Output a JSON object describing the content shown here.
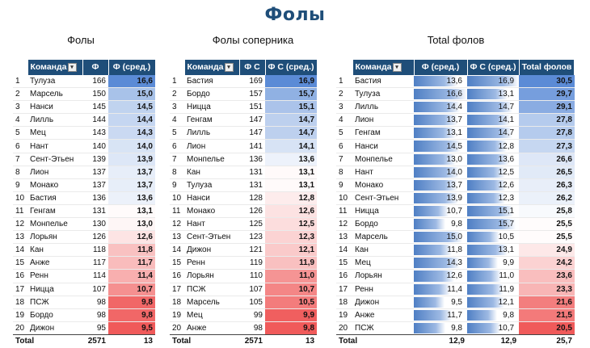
{
  "page_title": "Фолы",
  "colors": {
    "header_bg": "#1f4e79",
    "title": "#1f4e79"
  },
  "table1": {
    "subtitle": "Фолы",
    "headers": [
      "Команда",
      "Ф",
      "Ф (сред.)"
    ],
    "rows": [
      [
        "1",
        "Тулуза",
        "166",
        "16,6"
      ],
      [
        "2",
        "Марсель",
        "150",
        "15,0"
      ],
      [
        "3",
        "Нанси",
        "145",
        "14,5"
      ],
      [
        "4",
        "Лилль",
        "144",
        "14,4"
      ],
      [
        "5",
        "Мец",
        "143",
        "14,3"
      ],
      [
        "6",
        "Нант",
        "140",
        "14,0"
      ],
      [
        "7",
        "Сент-Этьен",
        "139",
        "13,9"
      ],
      [
        "8",
        "Лион",
        "137",
        "13,7"
      ],
      [
        "9",
        "Монако",
        "137",
        "13,7"
      ],
      [
        "10",
        "Бастия",
        "136",
        "13,6"
      ],
      [
        "11",
        "Генгам",
        "131",
        "13,1"
      ],
      [
        "12",
        "Монпелье",
        "130",
        "13,0"
      ],
      [
        "13",
        "Лорьян",
        "126",
        "12,6"
      ],
      [
        "14",
        "Кан",
        "118",
        "11,8"
      ],
      [
        "15",
        "Анже",
        "117",
        "11,7"
      ],
      [
        "16",
        "Ренн",
        "114",
        "11,4"
      ],
      [
        "17",
        "Ницца",
        "107",
        "10,7"
      ],
      [
        "18",
        "ПСЖ",
        "98",
        "9,8"
      ],
      [
        "19",
        "Бордо",
        "98",
        "9,8"
      ],
      [
        "20",
        "Дижон",
        "95",
        "9,5"
      ]
    ],
    "total": [
      "Total",
      "2571",
      "13"
    ]
  },
  "table2": {
    "subtitle": "Фолы соперника",
    "headers": [
      "Команда",
      "Ф С",
      "Ф С (сред.)"
    ],
    "rows": [
      [
        "1",
        "Бастия",
        "169",
        "16,9"
      ],
      [
        "2",
        "Бордо",
        "157",
        "15,7"
      ],
      [
        "3",
        "Ницца",
        "151",
        "15,1"
      ],
      [
        "4",
        "Генгам",
        "147",
        "14,7"
      ],
      [
        "5",
        "Лилль",
        "147",
        "14,7"
      ],
      [
        "6",
        "Лион",
        "141",
        "14,1"
      ],
      [
        "7",
        "Монпелье",
        "136",
        "13,6"
      ],
      [
        "8",
        "Кан",
        "131",
        "13,1"
      ],
      [
        "9",
        "Тулуза",
        "131",
        "13,1"
      ],
      [
        "10",
        "Нанси",
        "128",
        "12,8"
      ],
      [
        "11",
        "Монако",
        "126",
        "12,6"
      ],
      [
        "12",
        "Нант",
        "125",
        "12,5"
      ],
      [
        "13",
        "Сент-Этьен",
        "123",
        "12,3"
      ],
      [
        "14",
        "Дижон",
        "121",
        "12,1"
      ],
      [
        "15",
        "Ренн",
        "119",
        "11,9"
      ],
      [
        "16",
        "Лорьян",
        "110",
        "11,0"
      ],
      [
        "17",
        "ПСЖ",
        "107",
        "10,7"
      ],
      [
        "18",
        "Марсель",
        "105",
        "10,5"
      ],
      [
        "19",
        "Мец",
        "99",
        "9,9"
      ],
      [
        "20",
        "Анже",
        "98",
        "9,8"
      ]
    ],
    "total": [
      "Total",
      "2571",
      "13"
    ]
  },
  "table3": {
    "subtitle": "Total фолов",
    "headers": [
      "Команда",
      "Ф (сред.)",
      "Ф С (сред.)",
      "Total фолов"
    ],
    "rows": [
      [
        "1",
        "Бастия",
        "13,6",
        "16,9",
        "30,5"
      ],
      [
        "2",
        "Тулуза",
        "16,6",
        "13,1",
        "29,7"
      ],
      [
        "3",
        "Лилль",
        "14,4",
        "14,7",
        "29,1"
      ],
      [
        "4",
        "Лион",
        "13,7",
        "14,1",
        "27,8"
      ],
      [
        "5",
        "Генгам",
        "13,1",
        "14,7",
        "27,8"
      ],
      [
        "6",
        "Нанси",
        "14,5",
        "12,8",
        "27,3"
      ],
      [
        "7",
        "Монпелье",
        "13,0",
        "13,6",
        "26,6"
      ],
      [
        "8",
        "Нант",
        "14,0",
        "12,5",
        "26,5"
      ],
      [
        "9",
        "Монако",
        "13,7",
        "12,6",
        "26,3"
      ],
      [
        "10",
        "Сент-Этьен",
        "13,9",
        "12,3",
        "26,2"
      ],
      [
        "11",
        "Ницца",
        "10,7",
        "15,1",
        "25,8"
      ],
      [
        "12",
        "Бордо",
        "9,8",
        "15,7",
        "25,5"
      ],
      [
        "13",
        "Марсель",
        "15,0",
        "10,5",
        "25,5"
      ],
      [
        "14",
        "Кан",
        "11,8",
        "13,1",
        "24,9"
      ],
      [
        "15",
        "Мец",
        "14,3",
        "9,9",
        "24,2"
      ],
      [
        "16",
        "Лорьян",
        "12,6",
        "11,0",
        "23,6"
      ],
      [
        "17",
        "Ренн",
        "11,4",
        "11,9",
        "23,3"
      ],
      [
        "18",
        "Дижон",
        "9,5",
        "12,1",
        "21,6"
      ],
      [
        "19",
        "Анже",
        "11,7",
        "9,8",
        "21,5"
      ],
      [
        "20",
        "ПСЖ",
        "9,8",
        "10,7",
        "20,5"
      ]
    ],
    "total": [
      "Total",
      "12,9",
      "12,9",
      "25,7"
    ]
  }
}
